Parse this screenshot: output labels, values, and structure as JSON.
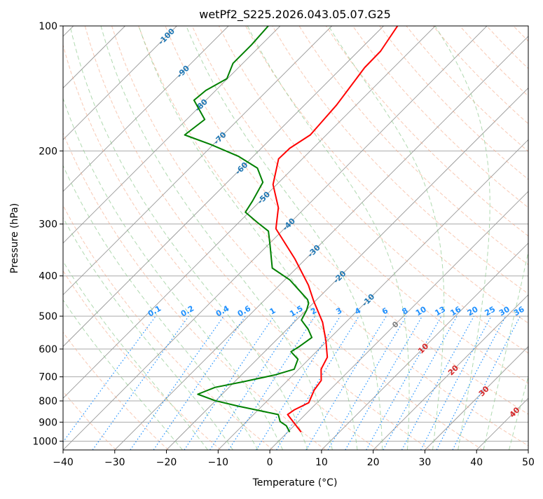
{
  "chart_data": {
    "type": "line",
    "subtype": "skew-t log-p",
    "title": "wetPf2_S225.2026.043.05.07.G25",
    "xlabel": "Temperature (°C)",
    "ylabel": "Pressure (hPa)",
    "xlim": [
      -40,
      50
    ],
    "ylim": [
      1050,
      100
    ],
    "xticks": [
      -40,
      -30,
      -20,
      -10,
      0,
      10,
      20,
      30,
      40,
      50
    ],
    "yticks": [
      100,
      200,
      300,
      400,
      500,
      600,
      700,
      800,
      900,
      1000
    ],
    "grid": true,
    "series": [
      {
        "name": "Temperature",
        "color": "#ff0000",
        "p": [
          951,
          863,
          840,
          808,
          753,
          714,
          671,
          628,
          574,
          517,
          460,
          421,
          364,
          308,
          274,
          241,
          209,
          197,
          183,
          170,
          155,
          138,
          126,
          115,
          100
        ],
        "T": [
          2.6,
          -3.4,
          -3.0,
          -1.6,
          -3.0,
          -3.5,
          -5.7,
          -6.8,
          -10.2,
          -14.5,
          -20.3,
          -24.4,
          -32.1,
          -41.6,
          -45.2,
          -50.7,
          -54.6,
          -54.5,
          -53.1,
          -53.4,
          -53.8,
          -54.8,
          -55.6,
          -55.7,
          -57.3
        ]
      },
      {
        "name": "Dewpoint",
        "color": "#008000",
        "p": [
          951,
          918,
          897,
          863,
          824,
          799,
          771,
          742,
          719,
          692,
          671,
          635,
          609,
          592,
          563,
          538,
          511,
          484,
          465,
          456,
          409,
          383,
          337,
          312,
          297,
          281,
          264,
          238,
          220,
          206,
          193,
          183,
          168,
          151,
          143,
          134,
          123,
          111,
          100
        ],
        "T": [
          0.4,
          -1.5,
          -3.5,
          -5.2,
          -14.5,
          -20.1,
          -24.7,
          -22.7,
          -18.3,
          -13.4,
          -10.9,
          -12.1,
          -14.9,
          -14.3,
          -13.6,
          -15.9,
          -19.0,
          -19.9,
          -20.9,
          -21.8,
          -29.0,
          -34.7,
          -39.6,
          -42.6,
          -46.5,
          -50.7,
          -51.5,
          -53.1,
          -56.9,
          -62.9,
          -70.5,
          -77.4,
          -76.5,
          -82.3,
          -81.9,
          -80.1,
          -81.9,
          -81.9,
          -82.3
        ]
      }
    ],
    "mixing_ratio_lines": {
      "label_pressure": 500,
      "values": [
        "0.1",
        "0.2",
        "0.4",
        "0.6",
        "1",
        "1.5",
        "2",
        "3",
        "4",
        "6",
        "8",
        "10",
        "13",
        "16",
        "20",
        "25",
        "30",
        "36"
      ],
      "color": "#1e90ff"
    },
    "isotherm_labels": {
      "values": [
        -100,
        -90,
        -80,
        -70,
        -60,
        -50,
        -40,
        -30,
        -20,
        -10,
        0,
        10,
        20,
        30,
        40
      ],
      "colors": {
        "negative": "#1f77b4",
        "zero": "#808080",
        "positive": "#d62728"
      }
    },
    "background_colors": {
      "isotherm": "#999999",
      "dry_adiabat": "#f4a582",
      "moist_adiabat": "#8fc98f",
      "isobar": "#aaaaaa"
    }
  }
}
